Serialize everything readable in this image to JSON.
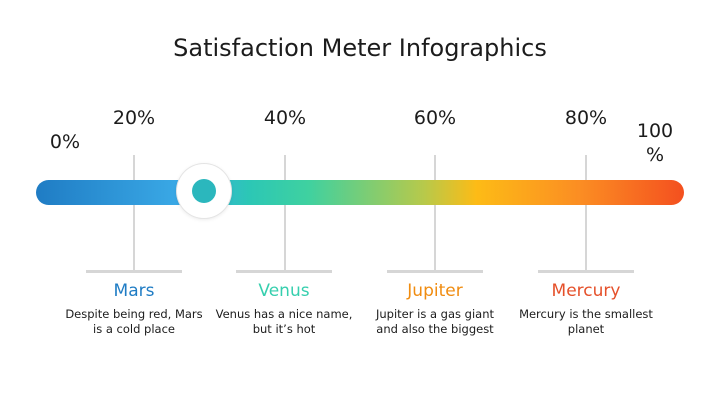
{
  "title": "Satisfaction Meter Infographics",
  "scale": {
    "labels": [
      "0%",
      "20%",
      "40%",
      "60%",
      "80%",
      "100 %"
    ]
  },
  "meter": {
    "value_percent": 26,
    "knob_color": "#2bb7bd",
    "gradient_colors": [
      "#1f7cc4",
      "#3aa9e6",
      "#2cc7b5",
      "#b8c94a",
      "#fdbb16",
      "#fb8d23",
      "#f4501f"
    ]
  },
  "items": [
    {
      "name": "Mars",
      "color": "#1f7cc4",
      "description": "Despite being red, Mars is a cold place"
    },
    {
      "name": "Venus",
      "color": "#36cfae",
      "description": "Venus has a nice name, but it’s hot"
    },
    {
      "name": "Jupiter",
      "color": "#f08c10",
      "description": "Jupiter is a gas giant and also the biggest"
    },
    {
      "name": "Mercury",
      "color": "#e5502a",
      "description": "Mercury is the smallest planet"
    }
  ]
}
